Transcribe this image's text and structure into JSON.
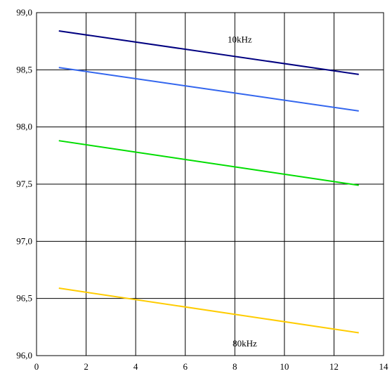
{
  "chart_data": {
    "type": "line",
    "title": "",
    "xlabel": "",
    "ylabel": "",
    "xlim": [
      0,
      14
    ],
    "ylim": [
      96.0,
      99.0
    ],
    "x_ticks": [
      0,
      2,
      4,
      6,
      8,
      10,
      12,
      14
    ],
    "y_ticks": [
      96.0,
      96.5,
      97.0,
      97.5,
      98.0,
      98.5,
      99.0
    ],
    "x_tick_labels": [
      "0",
      "2",
      "4",
      "6",
      "8",
      "10",
      "12",
      "14"
    ],
    "y_tick_labels": [
      "96,0",
      "96,5",
      "97,0",
      "97,5",
      "98,0",
      "98,5",
      "99,0"
    ],
    "grid": true,
    "legend": "none",
    "series": [
      {
        "color": "#000080",
        "x": [
          0.9,
          13.0
        ],
        "y": [
          98.84,
          98.46
        ]
      },
      {
        "color": "#3366ee",
        "x": [
          0.9,
          13.0
        ],
        "y": [
          98.52,
          98.14
        ]
      },
      {
        "color": "#00dd00",
        "x": [
          0.9,
          13.0
        ],
        "y": [
          97.88,
          97.49
        ]
      },
      {
        "color": "#ffcc00",
        "x": [
          0.9,
          13.0
        ],
        "y": [
          96.59,
          96.2
        ]
      }
    ],
    "annotations": [
      {
        "text": "10kHz",
        "x": 8.2,
        "y": 98.74
      },
      {
        "text": "80kHz",
        "x": 8.4,
        "y": 96.08
      }
    ]
  }
}
